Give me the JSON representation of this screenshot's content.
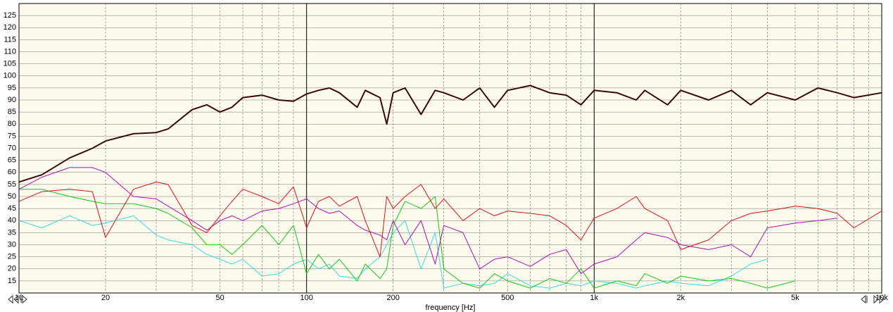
{
  "chart_data": {
    "type": "line",
    "x_label": "frequency [Hz]",
    "xscale": "log",
    "grid": true,
    "xlim": [
      10,
      10000
    ],
    "ylim": [
      10,
      130
    ],
    "xticks": [
      10,
      20,
      50,
      100,
      200,
      500,
      {
        "value": 1000,
        "label": "1k"
      },
      {
        "value": 2000,
        "label": "2k"
      },
      {
        "value": 5000,
        "label": "5k"
      },
      {
        "value": 10000,
        "label": "10k"
      }
    ],
    "xminorticks": [
      30,
      40,
      60,
      70,
      80,
      90,
      300,
      400,
      600,
      700,
      800,
      900,
      3000,
      4000,
      6000,
      7000,
      8000,
      9000
    ],
    "yticks": [
      15,
      20,
      25,
      30,
      35,
      40,
      45,
      50,
      55,
      60,
      65,
      70,
      75,
      80,
      85,
      90,
      95,
      100,
      105,
      110,
      115,
      120,
      125
    ],
    "x": [
      10,
      12,
      15,
      18,
      20,
      25,
      30,
      33,
      40,
      45,
      50,
      55,
      60,
      70,
      80,
      90,
      100,
      110,
      120,
      130,
      150,
      160,
      180,
      190,
      200,
      220,
      250,
      280,
      300,
      350,
      400,
      450,
      500,
      600,
      700,
      800,
      900,
      1000,
      1200,
      1400,
      1500,
      1800,
      2000,
      2500,
      3000,
      3500,
      4000,
      5000,
      6000,
      7000,
      8000,
      10000
    ],
    "series": [
      {
        "color": "#3b0808",
        "width": 2,
        "values": [
          56,
          59,
          66,
          70,
          73,
          76,
          76.5,
          78,
          86,
          88,
          85,
          87,
          91,
          92,
          90,
          89.5,
          92.5,
          94,
          95,
          93,
          87,
          94,
          91,
          80,
          93,
          95,
          84,
          94,
          93,
          90,
          95,
          87,
          94,
          96,
          93,
          92,
          88,
          94,
          93,
          90,
          94,
          88,
          94,
          90,
          94,
          88,
          93,
          90,
          95,
          93,
          91,
          93
        ]
      },
      {
        "color": "#dd1111",
        "width": 1,
        "values": [
          48,
          52,
          53,
          52,
          33,
          53,
          56,
          55,
          38,
          35,
          42,
          48,
          53,
          50,
          47,
          54,
          37,
          48,
          50,
          46,
          50,
          40,
          25,
          50,
          45,
          50,
          55,
          45,
          49,
          40,
          45,
          42,
          44,
          43,
          42,
          38,
          32,
          41,
          45,
          50,
          45,
          40,
          28,
          32,
          40,
          43,
          44,
          46,
          45,
          43,
          37,
          44
        ]
      },
      {
        "color": "#b010b0",
        "width": 1,
        "values": [
          53,
          58,
          62,
          62,
          60,
          50,
          49,
          46,
          40,
          36,
          40,
          42,
          40,
          44,
          45,
          47,
          49,
          45,
          43,
          44,
          38,
          36,
          34,
          32,
          40,
          30,
          40,
          22,
          38,
          35,
          20,
          24,
          25,
          21,
          26,
          28,
          18,
          22,
          25,
          32,
          35,
          33,
          30,
          28,
          30,
          25,
          37,
          39,
          40,
          41,
          null,
          null
        ]
      },
      {
        "color": "#11cc11",
        "width": 1,
        "values": [
          53,
          53,
          50,
          48,
          47,
          47,
          45,
          43,
          37,
          30,
          30,
          26,
          30,
          38,
          30,
          38,
          18,
          26,
          20,
          24,
          15,
          22,
          16,
          20,
          38,
          48,
          45,
          50,
          20,
          14,
          12,
          18,
          15,
          12,
          16,
          14,
          20,
          12,
          15,
          13,
          18,
          14,
          17,
          15,
          16,
          14,
          12,
          15,
          null,
          null,
          null,
          null
        ]
      },
      {
        "color": "#33dddd",
        "width": 1,
        "values": [
          40,
          37,
          42,
          38,
          39,
          42,
          34,
          32,
          30,
          26,
          24,
          22,
          24,
          17,
          18,
          22,
          24,
          20,
          22,
          17,
          16,
          20,
          25,
          30,
          35,
          40,
          20,
          35,
          12,
          14,
          13,
          14,
          18,
          13,
          12,
          14,
          13,
          15,
          14,
          12,
          13,
          15,
          14,
          13,
          17,
          22,
          24,
          null,
          null,
          null,
          null,
          null
        ]
      }
    ]
  }
}
